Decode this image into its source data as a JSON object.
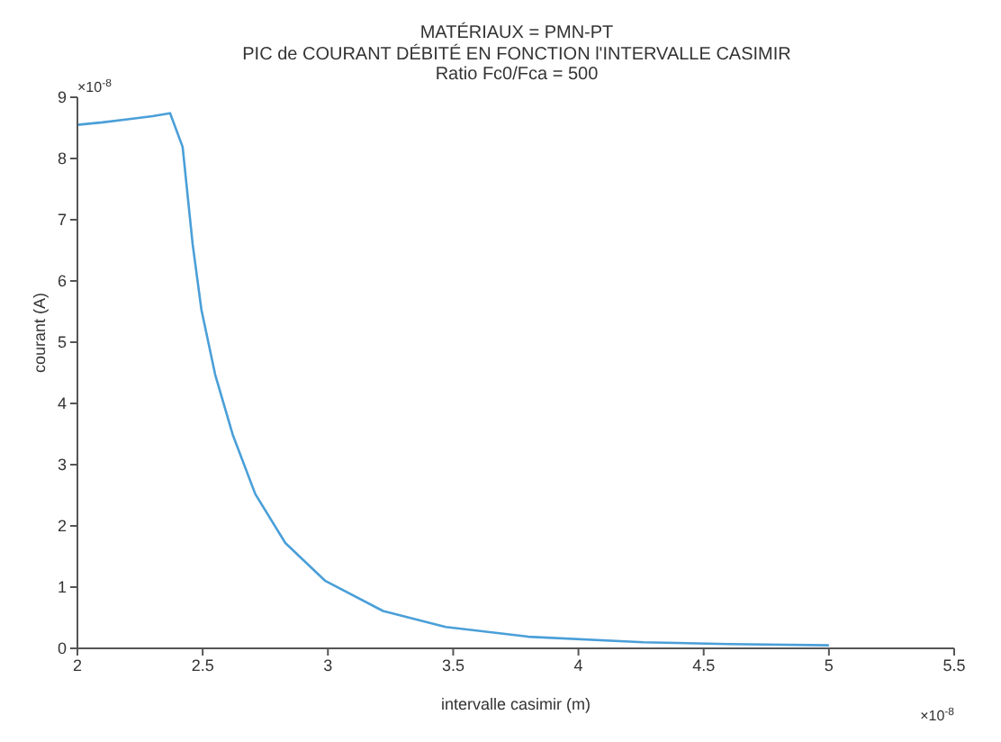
{
  "chart_data": {
    "type": "line",
    "title": "MATÉRIAUX = PMN-PT",
    "subtitle": "PIC de COURANT DÉBITÉ EN FONCTION  l'INTERVALLE CASIMIR\nRatio Fc0/Fca = 500",
    "xlabel": "intervalle casimir (m)",
    "ylabel": "courant (A)",
    "annotations": [
      "×10$^{-8}$",
      "×10$^{-8}$"
    ],
    "series": [
      {
        "color": "#4a9fd8",
        "x": [
          2,
          2.1,
          2.2,
          2.3,
          2.37,
          2.42,
          2.46,
          2.495,
          2.55,
          2.62,
          2.71,
          2.83,
          2.99,
          3.22,
          3.47,
          3.8,
          4.26,
          4.6,
          5
        ],
        "values": [
          8.55,
          8.59,
          8.64,
          8.69,
          8.74,
          8.19,
          6.6,
          5.53,
          4.47,
          3.49,
          2.52,
          1.72,
          1.1,
          0.61,
          0.35,
          0.19,
          0.1,
          0.07,
          0.05
        ]
      }
    ],
    "xlim": [
      2,
      5.5
    ],
    "xticks": [
      2,
      2.5,
      3,
      3.5,
      4,
      4.5,
      5,
      5.5
    ],
    "ylim": [
      0,
      9
    ],
    "yticks": [
      0,
      1,
      2,
      3,
      4,
      5,
      6,
      7,
      8,
      9
    ],
    "marker": "none",
    "line_style": "solid"
  }
}
